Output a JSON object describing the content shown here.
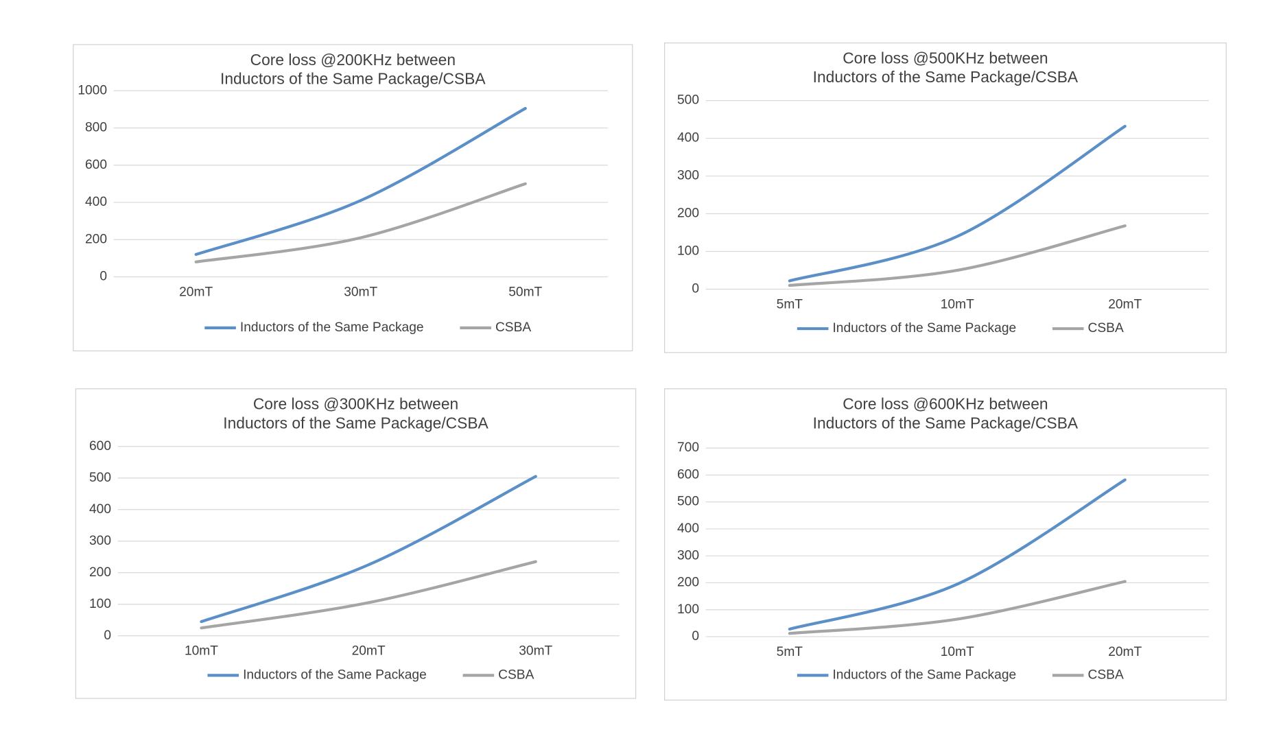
{
  "chart_data": [
    {
      "type": "line",
      "title": "Core loss @200KHz between",
      "subtitle": "Inductors of the Same Package/CSBA",
      "categories": [
        "20mT",
        "30mT",
        "50mT"
      ],
      "series": [
        {
          "name": "Inductors of the Same Package",
          "color": "#5b8fc7",
          "values": [
            120,
            410,
            905
          ]
        },
        {
          "name": "CSBA",
          "color": "#a5a5a5",
          "values": [
            80,
            210,
            500
          ]
        }
      ],
      "ylim": [
        0,
        1000
      ],
      "yticks": [
        0,
        200,
        400,
        600,
        800,
        1000
      ],
      "grid": true,
      "legend": "bottom"
    },
    {
      "type": "line",
      "title": "Core loss @500KHz between",
      "subtitle": "Inductors of the Same Package/CSBA",
      "categories": [
        "5mT",
        "10mT",
        "20mT"
      ],
      "series": [
        {
          "name": "Inductors of the Same Package",
          "color": "#5b8fc7",
          "values": [
            22,
            140,
            432
          ]
        },
        {
          "name": "CSBA",
          "color": "#a5a5a5",
          "values": [
            10,
            50,
            168
          ]
        }
      ],
      "ylim": [
        0,
        500
      ],
      "yticks": [
        0,
        100,
        200,
        300,
        400,
        500
      ],
      "grid": true,
      "legend": "bottom"
    },
    {
      "type": "line",
      "title": "Core loss @300KHz between",
      "subtitle": "Inductors of the Same Package/CSBA",
      "categories": [
        "10mT",
        "20mT",
        "30mT"
      ],
      "series": [
        {
          "name": "Inductors of the Same Package",
          "color": "#5b8fc7",
          "values": [
            45,
            225,
            505
          ]
        },
        {
          "name": "CSBA",
          "color": "#a5a5a5",
          "values": [
            25,
            105,
            235
          ]
        }
      ],
      "ylim": [
        0,
        600
      ],
      "yticks": [
        0,
        100,
        200,
        300,
        400,
        500,
        600
      ],
      "grid": true,
      "legend": "bottom"
    },
    {
      "type": "line",
      "title": "Core loss @600KHz between",
      "subtitle": "Inductors of the Same Package/CSBA",
      "categories": [
        "5mT",
        "10mT",
        "20mT"
      ],
      "series": [
        {
          "name": "Inductors of the Same Package",
          "color": "#5b8fc7",
          "values": [
            28,
            195,
            582
          ]
        },
        {
          "name": "CSBA",
          "color": "#a5a5a5",
          "values": [
            12,
            65,
            205
          ]
        }
      ],
      "ylim": [
        0,
        700
      ],
      "yticks": [
        0,
        100,
        200,
        300,
        400,
        500,
        600,
        700
      ],
      "grid": true,
      "legend": "bottom"
    }
  ]
}
